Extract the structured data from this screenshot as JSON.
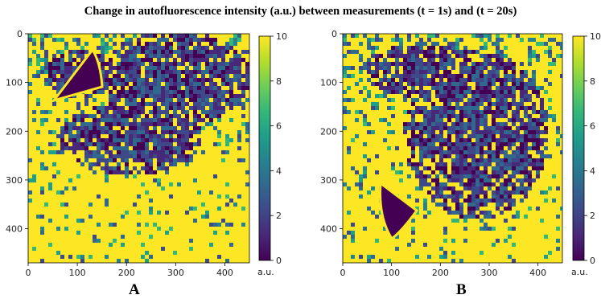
{
  "title": "Change in autofluorescence intensity (a.u.) between measurements (t = 1s) and (t = 20s)",
  "colors": {
    "viridis": [
      "#440154",
      "#482878",
      "#3e4989",
      "#31688e",
      "#26828e",
      "#1f9e89",
      "#35b779",
      "#6ece58",
      "#b5de2b",
      "#fde725"
    ],
    "background": "#ffffff",
    "axis": "#222222"
  },
  "chart_data": [
    {
      "type": "heatmap",
      "panel_label": "A",
      "x_ticks": [
        "0",
        "100",
        "200",
        "300",
        "400"
      ],
      "y_ticks": [
        "0",
        "100",
        "200",
        "300",
        "400"
      ],
      "xlim": [
        0,
        450
      ],
      "ylim": [
        470,
        0
      ],
      "colorbar": {
        "ticks": [
          "0",
          "2",
          "4",
          "6",
          "8",
          "10"
        ],
        "range": [
          0,
          10
        ],
        "label": "a.u.",
        "colormap": "viridis"
      }
    },
    {
      "type": "heatmap",
      "panel_label": "B",
      "x_ticks": [
        "0",
        "100",
        "200",
        "300",
        "400"
      ],
      "y_ticks": [
        "0",
        "100",
        "200",
        "300",
        "400"
      ],
      "xlim": [
        0,
        450
      ],
      "ylim": [
        470,
        0
      ],
      "colorbar": {
        "ticks": [
          "0",
          "2",
          "4",
          "6",
          "8",
          "10"
        ],
        "range": [
          0,
          10
        ],
        "label": "a.u.",
        "colormap": "viridis"
      }
    }
  ]
}
